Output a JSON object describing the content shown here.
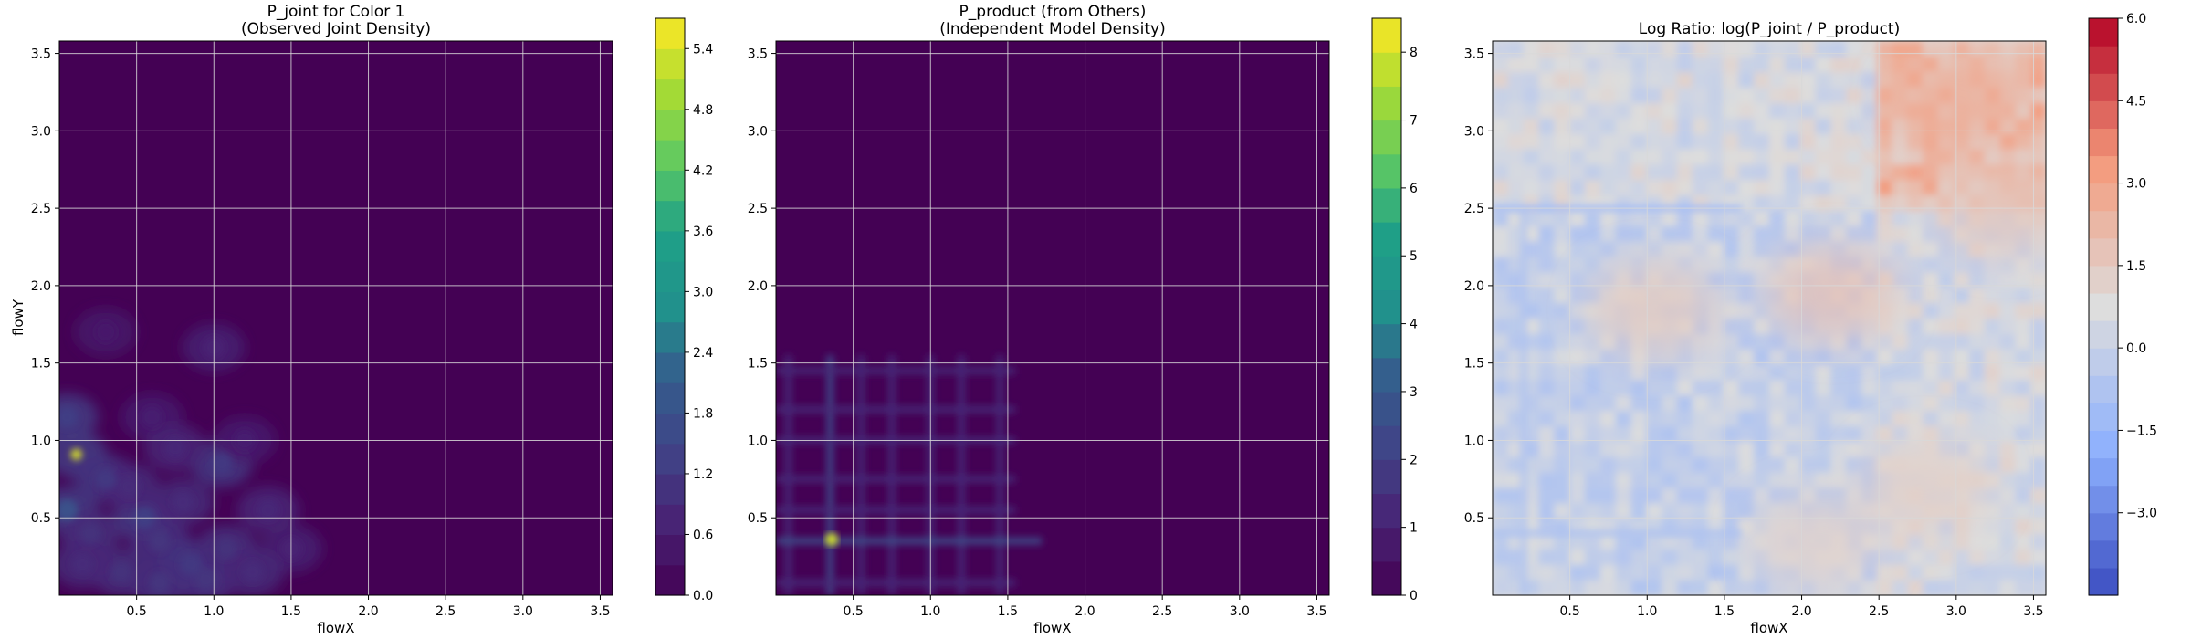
{
  "colors": {
    "viridis_low": "#440154",
    "grid": "#cccccc",
    "axis": "#000000"
  },
  "chart_data": [
    {
      "type": "heatmap",
      "title_line1": "P_joint for Color 1",
      "title_line2": "(Observed Joint Density)",
      "xlabel": "flowX",
      "ylabel": "flowY",
      "xlim": [
        0.0,
        3.58
      ],
      "ylim": [
        0.0,
        3.58
      ],
      "xticks": [
        "0.5",
        "1.0",
        "1.5",
        "2.0",
        "2.5",
        "3.0",
        "3.5"
      ],
      "yticks": [
        "0.5",
        "1.0",
        "1.5",
        "2.0",
        "2.5",
        "3.0",
        "3.5"
      ],
      "xtick_values": [
        0.5,
        1.0,
        1.5,
        2.0,
        2.5,
        3.0,
        3.5
      ],
      "ytick_values": [
        0.5,
        1.0,
        1.5,
        2.0,
        2.5,
        3.0,
        3.5
      ],
      "colormap": "viridis",
      "background_value": 0.0,
      "colorbar": {
        "range": [
          0.0,
          5.7
        ],
        "ticks": [
          "0.0",
          "0.6",
          "1.2",
          "1.8",
          "2.4",
          "3.0",
          "3.6",
          "4.2",
          "4.8",
          "5.4"
        ],
        "tick_values": [
          0.0,
          0.6,
          1.2,
          1.8,
          2.4,
          3.0,
          3.6,
          4.2,
          4.8,
          5.4
        ],
        "levels": 19
      },
      "hotspots": [
        {
          "x": 0.11,
          "y": 0.91,
          "value": 5.4
        },
        {
          "x": 0.05,
          "y": 0.55,
          "value": 1.8
        },
        {
          "x": 0.05,
          "y": 1.15,
          "value": 1.3
        },
        {
          "x": 0.3,
          "y": 0.75,
          "value": 1.2
        },
        {
          "x": 0.55,
          "y": 0.5,
          "value": 1.3
        },
        {
          "x": 0.65,
          "y": 0.35,
          "value": 1.1
        },
        {
          "x": 0.85,
          "y": 0.2,
          "value": 1.2
        },
        {
          "x": 0.95,
          "y": 0.1,
          "value": 1.1
        },
        {
          "x": 0.65,
          "y": 0.08,
          "value": 1.1
        },
        {
          "x": 1.05,
          "y": 0.85,
          "value": 1.2
        },
        {
          "x": 1.08,
          "y": 0.3,
          "value": 1.0
        },
        {
          "x": 1.35,
          "y": 0.55,
          "value": 0.8
        },
        {
          "x": 0.45,
          "y": 0.7,
          "value": 0.9
        },
        {
          "x": 0.2,
          "y": 0.4,
          "value": 1.0
        },
        {
          "x": 0.8,
          "y": 0.6,
          "value": 0.9
        },
        {
          "x": 1.0,
          "y": 1.6,
          "value": 0.7
        },
        {
          "x": 0.6,
          "y": 1.15,
          "value": 0.6
        },
        {
          "x": 1.5,
          "y": 0.3,
          "value": 0.7
        },
        {
          "x": 0.3,
          "y": 1.7,
          "value": 0.5
        },
        {
          "x": 1.25,
          "y": 0.15,
          "value": 0.9
        },
        {
          "x": 0.4,
          "y": 0.15,
          "value": 1.0
        },
        {
          "x": 0.15,
          "y": 0.2,
          "value": 0.9
        },
        {
          "x": 0.75,
          "y": 0.95,
          "value": 0.8
        },
        {
          "x": 1.2,
          "y": 1.0,
          "value": 0.6
        }
      ]
    },
    {
      "type": "heatmap",
      "title_line1": "P_product (from Others)",
      "title_line2": "(Independent Model Density)",
      "xlabel": "flowX",
      "ylabel": "",
      "xlim": [
        0.0,
        3.58
      ],
      "ylim": [
        0.0,
        3.58
      ],
      "xticks": [
        "0.5",
        "1.0",
        "1.5",
        "2.0",
        "2.5",
        "3.0",
        "3.5"
      ],
      "yticks": [
        "0.5",
        "1.0",
        "1.5",
        "2.0",
        "2.5",
        "3.0",
        "3.5"
      ],
      "xtick_values": [
        0.5,
        1.0,
        1.5,
        2.0,
        2.5,
        3.0,
        3.5
      ],
      "ytick_values": [
        0.5,
        1.0,
        1.5,
        2.0,
        2.5,
        3.0,
        3.5
      ],
      "colormap": "viridis",
      "background_value": 0.0,
      "colorbar": {
        "range": [
          0.0,
          8.5
        ],
        "ticks": [
          "0",
          "1",
          "2",
          "3",
          "4",
          "5",
          "6",
          "7",
          "8"
        ],
        "tick_values": [
          0,
          1,
          2,
          3,
          4,
          5,
          6,
          7,
          8
        ],
        "levels": 17
      },
      "hot_columns": [
        0.08,
        0.35,
        0.55,
        0.75,
        1.0,
        1.2,
        1.45
      ],
      "hot_rows": [
        0.08,
        0.35,
        0.55,
        0.75,
        1.0,
        1.2,
        1.45
      ],
      "peak": {
        "x": 0.36,
        "y": 0.36,
        "value": 8.0
      }
    },
    {
      "type": "heatmap",
      "title_line1": "Log Ratio: log(P_joint / P_product)",
      "title_line2": "",
      "xlabel": "flowX",
      "ylabel": "",
      "xlim": [
        0.0,
        3.58
      ],
      "ylim": [
        0.0,
        3.58
      ],
      "xticks": [
        "0.5",
        "1.0",
        "1.5",
        "2.0",
        "2.5",
        "3.0",
        "3.5"
      ],
      "yticks": [
        "0.5",
        "1.0",
        "1.5",
        "2.0",
        "2.5",
        "3.0",
        "3.5"
      ],
      "xtick_values": [
        0.5,
        1.0,
        1.5,
        2.0,
        2.5,
        3.0,
        3.5
      ],
      "ytick_values": [
        0.5,
        1.0,
        1.5,
        2.0,
        2.5,
        3.0,
        3.5
      ],
      "colormap": "coolwarm",
      "colorbar": {
        "range": [
          -4.5,
          6.0
        ],
        "ticks": [
          "6.0",
          "4.5",
          "3.0",
          "1.5",
          "0.0",
          "−1.5",
          "−3.0"
        ],
        "tick_values": [
          6.0,
          4.5,
          3.0,
          1.5,
          0.0,
          -1.5,
          -3.0
        ],
        "levels": 21
      },
      "warm_regions": [
        {
          "x": 3.0,
          "y": 3.2,
          "value": 2.5
        },
        {
          "x": 2.2,
          "y": 1.95,
          "value": 1.8
        },
        {
          "x": 1.05,
          "y": 1.85,
          "value": 1.5
        },
        {
          "x": 2.8,
          "y": 0.7,
          "value": 1.3
        },
        {
          "x": 2.1,
          "y": 0.35,
          "value": 1.2
        },
        {
          "x": 3.3,
          "y": 2.5,
          "value": 1.6
        }
      ],
      "cool_bands": [
        {
          "axis": "y",
          "at": 2.5,
          "value": -1.2
        },
        {
          "axis": "x",
          "at": 0.2,
          "value": -0.8
        },
        {
          "axis": "y",
          "at": 0.4,
          "value": -0.8
        }
      ]
    }
  ]
}
